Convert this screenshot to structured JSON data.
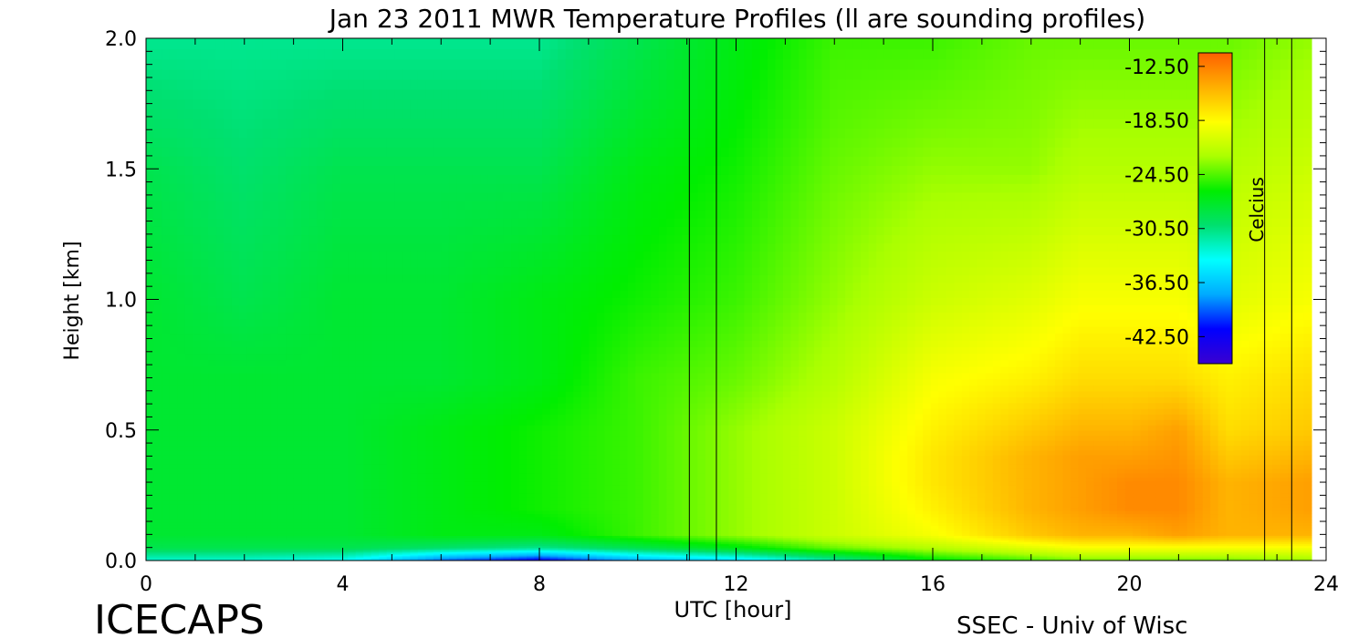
{
  "chart_data": {
    "type": "heatmap",
    "title": "Jan 23 2011 MWR Temperature Profiles (ll are sounding profiles)",
    "xlabel": "UTC [hour]",
    "ylabel": "Height [km]",
    "xlim": [
      0,
      24
    ],
    "ylim": [
      0.0,
      2.0
    ],
    "x_ticks": [
      "0",
      "4",
      "8",
      "12",
      "16",
      "20",
      "24"
    ],
    "y_ticks": [
      "0.0",
      "0.5",
      "1.0",
      "1.5",
      "2.0"
    ],
    "colorbar": {
      "label": "Celcius",
      "range": [
        -45.5,
        -11.0
      ],
      "ticks": [
        "-12.50",
        "-18.50",
        "-24.50",
        "-30.50",
        "-36.50",
        "-42.50"
      ],
      "colors": [
        "#3a00d0",
        "#0000ff",
        "#00aaff",
        "#00ffff",
        "#00e070",
        "#00ee00",
        "#aaff00",
        "#ffff00",
        "#ffb000",
        "#ff6000"
      ]
    },
    "sounding_times_utc": [
      11.05,
      11.6,
      22.75,
      23.3
    ],
    "temperature_times_utc": [
      0,
      2,
      4,
      6,
      8,
      10,
      12,
      14,
      16,
      18,
      19,
      20,
      21,
      22,
      23.7
    ],
    "temperature_heights_km": [
      0.0,
      0.05,
      0.1,
      0.2,
      0.3,
      0.4,
      0.5,
      0.7,
      1.0,
      1.5,
      2.0
    ],
    "temperature_celsius": [
      [
        -33,
        -29,
        -28,
        -28,
        -28,
        -28,
        -28,
        -28,
        -28,
        -29,
        -31
      ],
      [
        -33,
        -29,
        -28,
        -28,
        -28,
        -28,
        -28,
        -28,
        -29,
        -30,
        -31
      ],
      [
        -34,
        -29,
        -28,
        -28,
        -28,
        -28,
        -28,
        -28,
        -28,
        -29,
        -31
      ],
      [
        -40,
        -30,
        -27,
        -27,
        -27,
        -27,
        -27,
        -28,
        -28,
        -29,
        -31
      ],
      [
        -43,
        -31,
        -27,
        -26,
        -26,
        -26,
        -26,
        -27,
        -27,
        -29,
        -31
      ],
      [
        -38,
        -29,
        -25,
        -25,
        -25,
        -25,
        -25,
        -25,
        -26,
        -27,
        -29
      ],
      [
        -36,
        -27,
        -23,
        -23,
        -23,
        -23,
        -23,
        -24,
        -25,
        -26,
        -27
      ],
      [
        -32,
        -24,
        -21,
        -21,
        -21,
        -21,
        -21,
        -22,
        -23,
        -24,
        -25
      ],
      [
        -27,
        -22,
        -19,
        -18,
        -17.5,
        -17.5,
        -18,
        -19,
        -21,
        -23,
        -25
      ],
      [
        -25,
        -20,
        -16,
        -15,
        -15,
        -15,
        -16,
        -18,
        -20,
        -23,
        -24
      ],
      [
        -24,
        -19,
        -15,
        -14,
        -14,
        -14,
        -15,
        -17,
        -19,
        -22,
        -24
      ],
      [
        -24,
        -19,
        -15,
        -13,
        -13,
        -14,
        -15,
        -17,
        -19,
        -22,
        -24
      ],
      [
        -24,
        -19,
        -14,
        -13,
        -13,
        -13.5,
        -14,
        -17,
        -19,
        -22,
        -24
      ],
      [
        -24,
        -19,
        -15,
        -15,
        -15,
        -16,
        -17,
        -18,
        -20,
        -22,
        -24
      ],
      [
        -23,
        -19,
        -15,
        -14,
        -14,
        -15,
        -16,
        -17,
        -19,
        -21,
        -23
      ]
    ]
  },
  "footer": {
    "left": "ICECAPS",
    "right": "SSEC - Univ of Wisc"
  }
}
